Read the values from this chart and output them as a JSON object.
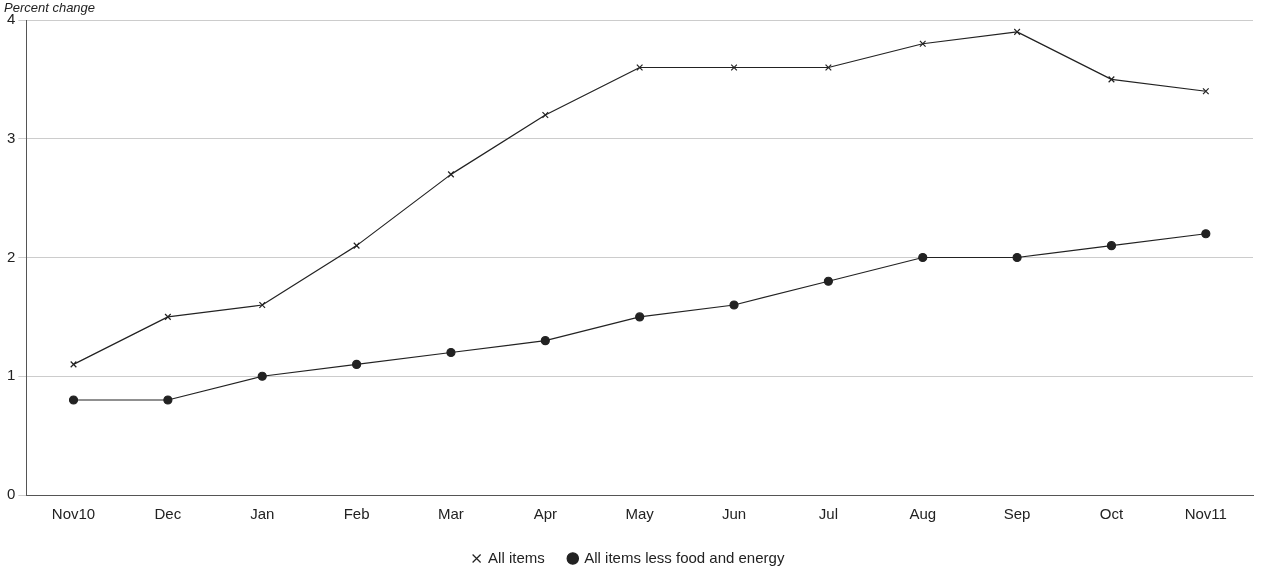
{
  "chart_data": {
    "type": "line",
    "ylabel": "Percent change",
    "categories": [
      "Nov10",
      "Dec",
      "Jan",
      "Feb",
      "Mar",
      "Apr",
      "May",
      "Jun",
      "Jul",
      "Aug",
      "Sep",
      "Oct",
      "Nov11"
    ],
    "series": [
      {
        "name": "All items",
        "color": "#222222",
        "marker": "cross",
        "values": [
          1.1,
          1.5,
          1.6,
          2.1,
          2.7,
          3.2,
          3.6,
          3.6,
          3.6,
          3.8,
          3.9,
          3.5,
          3.4
        ]
      },
      {
        "name": "All items less food and energy",
        "color": "#222222",
        "marker": "circle",
        "values": [
          0.8,
          0.8,
          1.0,
          1.1,
          1.2,
          1.3,
          1.5,
          1.6,
          1.8,
          2.0,
          2.0,
          2.1,
          2.2
        ]
      }
    ],
    "ylim": [
      0,
      4
    ],
    "yticks": [
      0,
      1,
      2,
      3,
      4
    ],
    "grid": "y",
    "legend": "bottom",
    "line_style": "solid"
  }
}
